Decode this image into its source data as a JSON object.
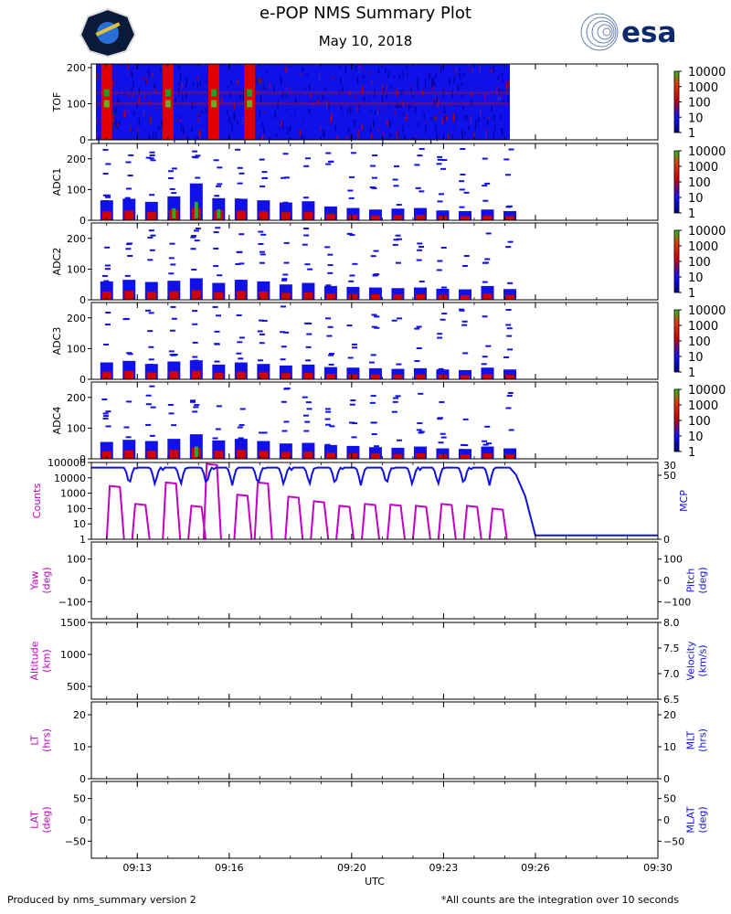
{
  "header": {
    "title": "e-POP NMS Summary Plot",
    "date": "May 10, 2018",
    "logo_left_icon": "epop-mission-patch-icon",
    "logo_right_icon": "esa-logo-icon",
    "logo_right_text": "esa"
  },
  "footer": {
    "left": "Produced by nms_summary version 2",
    "right": "*All counts are the integration over 10 seconds"
  },
  "colors": {
    "magenta": "#c400c4",
    "blue": "#1010e0",
    "spec_low": "#1010e8",
    "spec_mid": "#d00000",
    "spec_high": "#20b020"
  },
  "chart_data": [
    {
      "type": "heatmap",
      "id": "tof",
      "ylabel": "TOF",
      "ylim": [
        0,
        210
      ],
      "yticks": [
        0,
        100,
        200
      ],
      "colorbar": {
        "scale": "log",
        "ticks": [
          "1",
          "10",
          "100",
          "1000",
          "10000"
        ]
      },
      "bright_line_bins": [
        100,
        130
      ],
      "bright_band_times": [
        "09:12",
        "09:14",
        "09:15:30",
        "09:16:40"
      ],
      "data_end": "09:25:10"
    },
    {
      "type": "heatmap",
      "id": "adc1",
      "ylabel": "ADC1",
      "ylim": [
        0,
        250
      ],
      "yticks": [
        0,
        100,
        200
      ],
      "colorbar": {
        "scale": "log",
        "ticks": [
          "1",
          "10",
          "100",
          "1000",
          "10000"
        ]
      },
      "column_peaks": [
        65,
        70,
        60,
        78,
        120,
        72,
        70,
        65,
        58,
        62,
        45,
        40,
        35,
        38,
        40,
        32,
        30,
        35,
        30
      ]
    },
    {
      "type": "heatmap",
      "id": "adc2",
      "ylabel": "ADC2",
      "ylim": [
        0,
        250
      ],
      "yticks": [
        0,
        100,
        200
      ],
      "colorbar": {
        "scale": "log",
        "ticks": [
          "1",
          "10",
          "100",
          "1000",
          "10000"
        ]
      },
      "column_peaks": [
        60,
        65,
        58,
        62,
        70,
        55,
        65,
        60,
        50,
        55,
        45,
        42,
        40,
        38,
        40,
        36,
        34,
        45,
        35
      ]
    },
    {
      "type": "heatmap",
      "id": "adc3",
      "ylabel": "ADC3",
      "ylim": [
        0,
        250
      ],
      "yticks": [
        0,
        100,
        200
      ],
      "colorbar": {
        "scale": "log",
        "ticks": [
          "1",
          "10",
          "100",
          "1000",
          "10000"
        ]
      },
      "column_peaks": [
        55,
        60,
        50,
        58,
        62,
        48,
        55,
        50,
        45,
        48,
        40,
        38,
        36,
        34,
        36,
        32,
        30,
        38,
        32
      ]
    },
    {
      "type": "heatmap",
      "id": "adc4",
      "ylabel": "ADC4",
      "ylim": [
        0,
        250
      ],
      "yticks": [
        0,
        100,
        200
      ],
      "colorbar": {
        "scale": "log",
        "ticks": [
          "1",
          "10",
          "100",
          "1000",
          "10000"
        ]
      },
      "column_peaks": [
        55,
        62,
        58,
        65,
        80,
        60,
        65,
        58,
        50,
        52,
        45,
        42,
        38,
        36,
        40,
        34,
        32,
        40,
        34
      ]
    },
    {
      "type": "line",
      "id": "counts-mcp",
      "ylabel_left": "Counts",
      "ylabel_right": "MCP",
      "yscale_left": "log",
      "ylim_left": [
        1,
        100000
      ],
      "yticks_left": [
        "1",
        "10",
        "100",
        "1000",
        "10000",
        "100000"
      ],
      "ylim_right": [
        0,
        60
      ],
      "yticks_right": [
        "0",
        "50"
      ],
      "top_right_tick_fragment": "30",
      "counts_bursts": [
        {
          "start": "09:12:00",
          "peak": 3000
        },
        {
          "start": "09:12:50",
          "peak": 200
        },
        {
          "start": "09:13:50",
          "peak": 5000
        },
        {
          "start": "09:14:40",
          "peak": 150
        },
        {
          "start": "09:15:10",
          "peak": 80000
        },
        {
          "start": "09:16:10",
          "peak": 800
        },
        {
          "start": "09:16:50",
          "peak": 5000
        },
        {
          "start": "09:17:50",
          "peak": 600
        },
        {
          "start": "09:18:40",
          "peak": 300
        },
        {
          "start": "09:19:30",
          "peak": 150
        },
        {
          "start": "09:20:20",
          "peak": 200
        },
        {
          "start": "09:21:10",
          "peak": 180
        },
        {
          "start": "09:22:00",
          "peak": 150
        },
        {
          "start": "09:22:50",
          "peak": 200
        },
        {
          "start": "09:23:40",
          "peak": 150
        },
        {
          "start": "09:24:30",
          "peak": 100
        }
      ],
      "mcp": {
        "high": 56,
        "dip": 42,
        "period_min": 0.84,
        "drop_start": "09:25:10",
        "drop_end": "09:26:00",
        "low": 3
      }
    },
    {
      "type": "line",
      "id": "yaw-pitch",
      "ylabel_left": "Yaw\n(deg)",
      "ylabel_right": "Pitch\n(deg)",
      "ylim": [
        -180,
        180
      ],
      "yticks": [
        "-100",
        "0",
        "100"
      ],
      "series": []
    },
    {
      "type": "line",
      "id": "alt-vel",
      "ylabel_left": "Altitude\n(km)",
      "ylabel_right": "Velocity\n(km/s)",
      "ylim_left": [
        300,
        1500
      ],
      "yticks_left": [
        "500",
        "1000",
        "1500"
      ],
      "ylim_right": [
        6.5,
        8.0
      ],
      "yticks_right": [
        "6.5",
        "7.0",
        "7.5",
        "8.0"
      ],
      "series": []
    },
    {
      "type": "line",
      "id": "lt-mlt",
      "ylabel_left": "LT\n(hrs)",
      "ylabel_right": "MLT\n(hrs)",
      "ylim": [
        0,
        24
      ],
      "yticks": [
        "0",
        "10",
        "20"
      ],
      "series": []
    },
    {
      "type": "line",
      "id": "lat-mlat",
      "ylabel_left": "LAT\n(deg)",
      "ylabel_right": "MLAT\n(deg)",
      "ylim": [
        -90,
        90
      ],
      "yticks": [
        "-50",
        "0",
        "50"
      ],
      "series": []
    }
  ],
  "x_axis": {
    "label": "UTC",
    "start": "09:11:30",
    "end": "09:30:00",
    "tick_labels": [
      "09:13",
      "09:16",
      "09:20",
      "09:23",
      "09:26",
      "09:30"
    ]
  }
}
